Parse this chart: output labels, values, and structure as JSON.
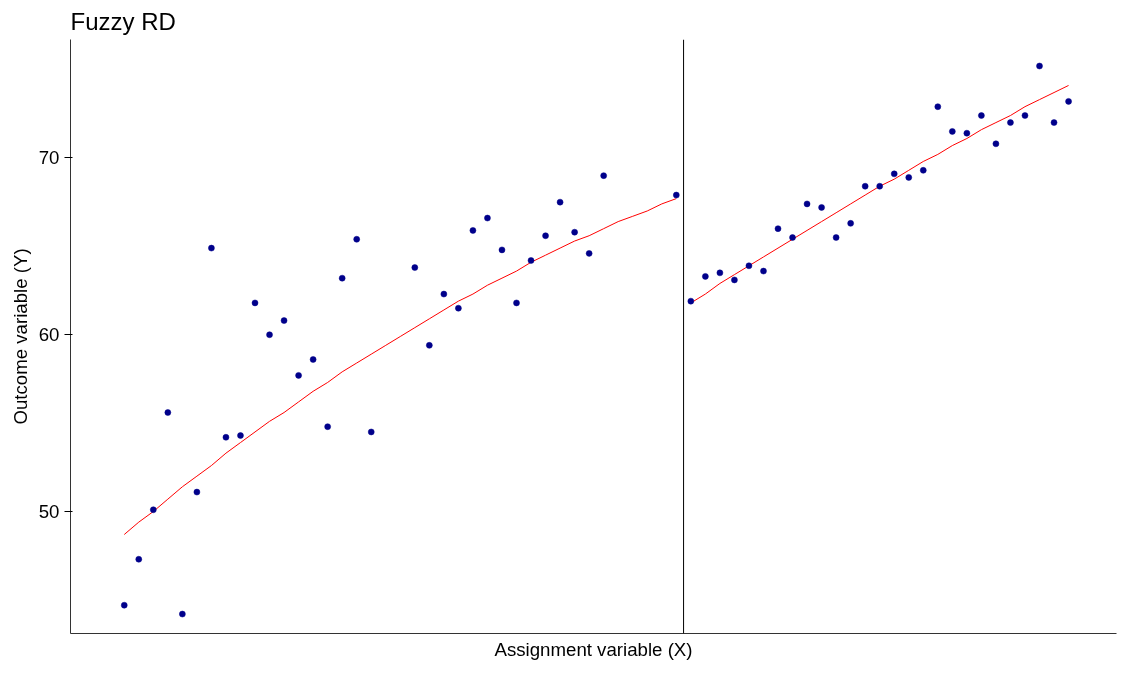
{
  "chart_data": {
    "type": "scatter",
    "title": "Fuzzy RD",
    "xlabel": "Assignment variable (X)",
    "ylabel": "Outcome variable (Y)",
    "categories": [
      null,
      null,
      null,
      null,
      null,
      null,
      null,
      null,
      null,
      null,
      null,
      null,
      null,
      null,
      null,
      null,
      null,
      null,
      null,
      null,
      null,
      null,
      null,
      null,
      null,
      null,
      null,
      null,
      null,
      null,
      null,
      null,
      null,
      null,
      null,
      null,
      null,
      null,
      null,
      null,
      null,
      null,
      null,
      null,
      null,
      null,
      null,
      null,
      null,
      null,
      null,
      null,
      null,
      null,
      null,
      null,
      null,
      null,
      null,
      null,
      null,
      null,
      null,
      null,
      null,
      null
    ],
    "series": [
      {
        "color": "#00008b",
        "marker": "circle",
        "values": [
          44.7,
          47.3,
          50.1,
          55.6,
          44.2,
          51.1,
          64.9,
          54.2,
          54.3,
          61.8,
          60.0,
          60.8,
          57.7,
          58.6,
          54.8,
          63.2,
          65.4,
          54.5,
          null,
          null,
          63.8,
          59.4,
          62.3,
          61.5,
          65.9,
          66.6,
          64.8,
          61.8,
          64.2,
          65.6,
          67.5,
          65.8,
          64.6,
          69.0,
          null,
          null,
          null,
          null,
          67.9,
          61.9,
          63.3,
          63.5,
          63.1,
          63.9,
          63.6,
          66.0,
          65.5,
          67.4,
          67.2,
          65.5,
          66.3,
          68.4,
          68.4,
          69.1,
          68.9,
          69.3,
          72.9,
          71.5,
          71.4,
          72.4,
          70.8,
          72.0,
          72.4,
          75.2,
          72.0,
          73.2
        ]
      },
      {
        "type": "line",
        "color": "#ff0000",
        "line_style": "solid",
        "values": [
          48.7,
          49.4,
          50.0,
          50.7,
          51.4,
          52.0,
          52.6,
          53.3,
          53.9,
          54.5,
          55.1,
          55.6,
          56.2,
          56.8,
          57.3,
          57.9,
          58.4,
          58.9,
          59.4,
          59.9,
          60.4,
          60.9,
          61.4,
          61.9,
          62.3,
          62.8,
          63.2,
          63.6,
          64.1,
          64.5,
          64.9,
          65.3,
          65.6,
          66.0,
          66.4,
          66.7,
          67.0,
          67.4,
          67.7,
          null,
          null,
          null,
          null,
          null,
          null,
          null,
          null,
          null,
          null,
          null,
          null,
          null,
          null,
          null,
          null,
          null,
          null,
          null,
          null,
          null,
          null,
          null,
          null,
          null,
          null,
          null
        ]
      },
      {
        "type": "line",
        "color": "#ff0000",
        "line_style": "solid",
        "values": [
          null,
          null,
          null,
          null,
          null,
          null,
          null,
          null,
          null,
          null,
          null,
          null,
          null,
          null,
          null,
          null,
          null,
          null,
          null,
          null,
          null,
          null,
          null,
          null,
          null,
          null,
          null,
          null,
          null,
          null,
          null,
          null,
          null,
          null,
          null,
          null,
          null,
          null,
          null,
          61.8,
          62.3,
          62.9,
          63.4,
          63.9,
          64.4,
          64.9,
          65.4,
          65.9,
          66.4,
          66.9,
          67.4,
          67.9,
          68.4,
          68.8,
          69.3,
          69.8,
          70.2,
          70.7,
          71.1,
          71.6,
          72.0,
          72.4,
          72.9,
          73.3,
          73.7,
          74.1
        ]
      }
    ],
    "ylim": [
      43.1,
      76.7
    ],
    "yticks": [
      50,
      60,
      70
    ],
    "grid": false,
    "tick_labels": "y"
  }
}
